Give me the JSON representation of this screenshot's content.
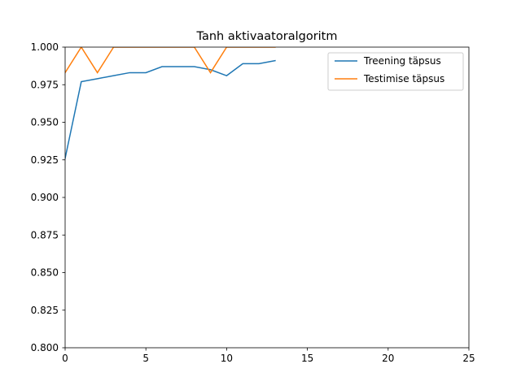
{
  "chart_data": {
    "type": "line",
    "title": "Tanh aktivaatoralgoritm",
    "xlabel": "",
    "ylabel": "",
    "xlim": [
      0,
      25
    ],
    "ylim": [
      0.8,
      1.0
    ],
    "x_ticks": [
      0,
      5,
      10,
      15,
      20,
      25
    ],
    "y_ticks": [
      0.8,
      0.825,
      0.85,
      0.875,
      0.9,
      0.925,
      0.95,
      0.975,
      1.0
    ],
    "x_tick_labels": [
      "0",
      "5",
      "10",
      "15",
      "20",
      "25"
    ],
    "y_tick_labels": [
      "0.800",
      "0.825",
      "0.850",
      "0.875",
      "0.900",
      "0.925",
      "0.950",
      "0.975",
      "1.000"
    ],
    "grid": false,
    "legend_position": "upper right",
    "series": [
      {
        "name": "Treening täpsus",
        "color": "#1f77b4",
        "x": [
          0,
          1,
          2,
          3,
          4,
          5,
          6,
          7,
          8,
          9,
          10,
          11,
          12,
          13
        ],
        "y": [
          0.926,
          0.977,
          0.979,
          0.981,
          0.983,
          0.983,
          0.987,
          0.987,
          0.987,
          0.985,
          0.981,
          0.989,
          0.989,
          0.991
        ]
      },
      {
        "name": "Testimise täpsus",
        "color": "#ff7f0e",
        "x": [
          0,
          1,
          2,
          3,
          4,
          5,
          6,
          7,
          8,
          9,
          10,
          11,
          12,
          13
        ],
        "y": [
          0.983,
          1.0,
          0.983,
          1.0,
          1.0,
          1.0,
          1.0,
          1.0,
          1.0,
          0.983,
          1.0,
          1.0,
          1.0,
          1.0
        ]
      }
    ]
  }
}
